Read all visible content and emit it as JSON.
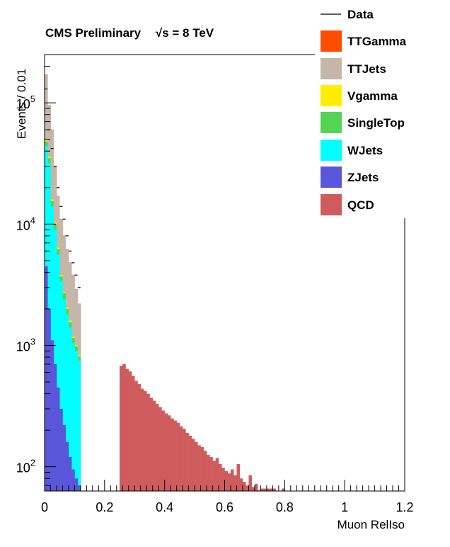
{
  "chart_data": {
    "type": "bar",
    "stacked": true,
    "title": "CMS Preliminary   √s = 8 TeV",
    "title_prefix": "CMS Preliminary",
    "title_sqrt": "√",
    "title_suffix": "s = 8 TeV",
    "xlabel": "Muon RelIso",
    "ylabel": "Events / 0.01",
    "xlim": [
      0,
      1.2
    ],
    "ylim": [
      63,
      250000
    ],
    "yscale": "log",
    "bin_width": 0.01,
    "x_ticks": [
      "0",
      "0.2",
      "0.4",
      "0.6",
      "0.8",
      "1",
      "1.2"
    ],
    "x_tick_values": [
      0,
      0.2,
      0.4,
      0.6,
      0.8,
      1.0,
      1.2
    ],
    "y_tick_exponents": [
      2,
      3,
      4,
      5
    ],
    "y_tick_base": "10",
    "legend_position": "top-right",
    "legend": [
      {
        "key": "data",
        "label": "Data",
        "style": "line",
        "color": "#000000"
      },
      {
        "key": "ttgamma",
        "label": "TTGamma",
        "style": "fill",
        "color": "#ff4d00"
      },
      {
        "key": "ttjets",
        "label": "TTJets",
        "style": "fill",
        "color": "#c4b7aa"
      },
      {
        "key": "vgamma",
        "label": "Vgamma",
        "style": "fill",
        "color": "#ffee00"
      },
      {
        "key": "singletop",
        "label": "SingleTop",
        "style": "fill",
        "color": "#54d454"
      },
      {
        "key": "wjets",
        "label": "WJets",
        "style": "fill",
        "color": "#00ffff"
      },
      {
        "key": "zjets",
        "label": "ZJets",
        "style": "fill",
        "color": "#5a56da"
      },
      {
        "key": "qcd",
        "label": "QCD",
        "style": "fill",
        "color": "#cf5c5c"
      }
    ],
    "mc_bins_x": [
      0.0,
      0.01,
      0.02,
      0.03,
      0.04,
      0.05,
      0.06,
      0.07,
      0.08,
      0.09,
      0.1,
      0.11
    ],
    "mc_cumulative": {
      "zjets": [
        4500,
        2000,
        1100,
        700,
        450,
        300,
        220,
        160,
        120,
        95,
        80,
        70
      ],
      "wjets": [
        44000,
        32000,
        14000,
        9000,
        5600,
        3400,
        2400,
        1800,
        1400,
        1050,
        900,
        750
      ],
      "singletop": [
        48000,
        35000,
        15500,
        10000,
        6200,
        3700,
        2700,
        2000,
        1550,
        1150,
        980,
        810
      ],
      "vgamma": [
        49500,
        36000,
        16000,
        10300,
        6400,
        3800,
        2750,
        2050,
        1600,
        1180,
        1000,
        830
      ],
      "ttjets": [
        170000,
        95000,
        60000,
        30000,
        17000,
        11000,
        8000,
        6200,
        4800,
        3800,
        2900,
        2200
      ],
      "ttgamma": [
        171000,
        95500,
        60300,
        30200,
        17100,
        11050,
        8050,
        6230,
        4820,
        3820,
        2910,
        2210
      ]
    },
    "qcd_bins_x": [
      0.25,
      0.26,
      0.27,
      0.28,
      0.29,
      0.3,
      0.31,
      0.32,
      0.33,
      0.34,
      0.35,
      0.36,
      0.37,
      0.38,
      0.39,
      0.4,
      0.41,
      0.42,
      0.43,
      0.44,
      0.45,
      0.46,
      0.47,
      0.48,
      0.49,
      0.5,
      0.51,
      0.52,
      0.53,
      0.54,
      0.55,
      0.56,
      0.57,
      0.58,
      0.59,
      0.6,
      0.61,
      0.62,
      0.63,
      0.64,
      0.65,
      0.66,
      0.67,
      0.68,
      0.69,
      0.7,
      0.71,
      0.72,
      0.73,
      0.74,
      0.75,
      0.76,
      0.77,
      0.78,
      0.79
    ],
    "qcd_values": [
      680,
      700,
      640,
      610,
      560,
      510,
      480,
      440,
      420,
      400,
      370,
      350,
      330,
      310,
      290,
      275,
      265,
      250,
      240,
      230,
      215,
      205,
      190,
      180,
      170,
      160,
      150,
      145,
      135,
      125,
      120,
      112,
      118,
      105,
      98,
      92,
      88,
      95,
      85,
      105,
      80,
      75,
      70,
      85,
      68,
      72,
      64,
      66,
      66,
      66,
      66,
      66,
      60,
      60,
      66
    ],
    "data_x": [
      0.005,
      0.015,
      0.025,
      0.035,
      0.045,
      0.055,
      0.065,
      0.075,
      0.085,
      0.095,
      0.105,
      0.115
    ],
    "data_y": [
      130000,
      60000,
      42000,
      30000,
      20000,
      14000,
      11000,
      8000,
      6000,
      4800,
      3800,
      3000
    ]
  }
}
